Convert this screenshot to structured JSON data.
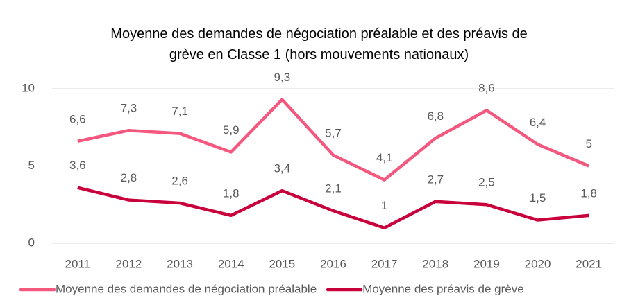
{
  "chart_data": {
    "type": "line",
    "title": "Moyenne des demandes de négociation préalable et des préavis de grève en Classe 1 (hors mouvements nationaux)",
    "categories": [
      "2011",
      "2012",
      "2013",
      "2014",
      "2015",
      "2016",
      "2017",
      "2018",
      "2019",
      "2020",
      "2021"
    ],
    "series": [
      {
        "name": "Moyenne des demandes de négociation préalable",
        "color": "#f4587e",
        "values": [
          6.6,
          7.3,
          7.1,
          5.9,
          9.3,
          5.7,
          4.1,
          6.8,
          8.6,
          6.4,
          5
        ],
        "value_labels": [
          "6,6",
          "7,3",
          "7,1",
          "5,9",
          "9,3",
          "5,7",
          "4,1",
          "6,8",
          "8,6",
          "6,4",
          "5"
        ]
      },
      {
        "name": "Moyenne des préavis de grève",
        "color": "#c8003c",
        "values": [
          3.6,
          2.8,
          2.6,
          1.8,
          3.4,
          2.1,
          1,
          2.7,
          2.5,
          1.5,
          1.8
        ],
        "value_labels": [
          "3,6",
          "2,8",
          "2,6",
          "1,8",
          "3,4",
          "2,1",
          "1",
          "2,7",
          "2,5",
          "1,5",
          "1,8"
        ]
      }
    ],
    "ylim": [
      0,
      10
    ],
    "yticks": [
      0,
      5,
      10
    ],
    "grid": true,
    "legend": "bottom"
  }
}
